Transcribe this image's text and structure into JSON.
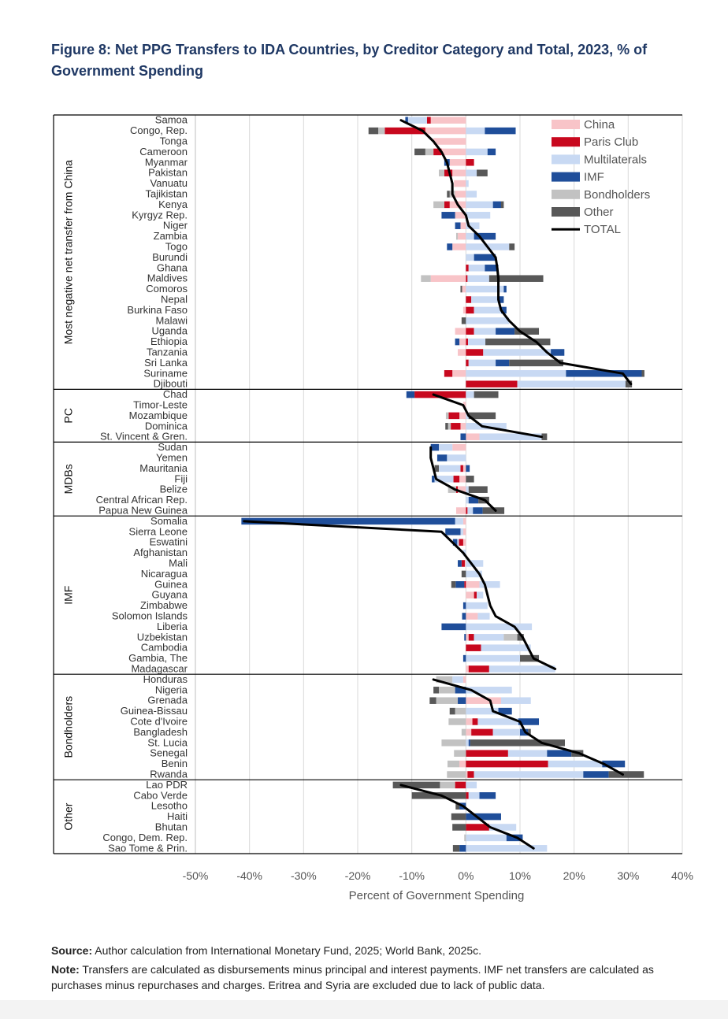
{
  "title": "Figure 8:  Net PPG Transfers to IDA Countries, by Creditor Category and Total, 2023, % of Government Spending",
  "source": {
    "label": "Source:",
    "text": " Author calculation from International Monetary Fund, 2025; World Bank, 2025c."
  },
  "note": {
    "label": "Note:",
    "text": " Transfers are calculated as disbursements minus principal and interest payments. IMF net transfers are calculated as purchases minus repurchases and charges. Eritrea and Syria are excluded due to lack of public data."
  },
  "chart_data": {
    "type": "bar",
    "orientation": "horizontal-stacked",
    "xlabel": "Percent of Government Spending",
    "xlim": [
      -50,
      40
    ],
    "xticks": [
      -50,
      -40,
      -30,
      -20,
      -10,
      0,
      10,
      20,
      30,
      40
    ],
    "xtick_labels": [
      "-50%",
      "-40%",
      "-30%",
      "-20%",
      "-10%",
      "0%",
      "10%",
      "20%",
      "30%",
      "40%"
    ],
    "grid": true,
    "legend_position": "top-right",
    "series": [
      {
        "key": "china",
        "name": "China",
        "color": "#f8c4c8"
      },
      {
        "key": "paris",
        "name": "Paris Club",
        "color": "#c8081e"
      },
      {
        "key": "multi",
        "name": "Multilaterals",
        "color": "#c8d9f3"
      },
      {
        "key": "imf",
        "name": "IMF",
        "color": "#1f4e9a"
      },
      {
        "key": "bond",
        "name": "Bondholders",
        "color": "#c2c2c2"
      },
      {
        "key": "other",
        "name": "Other",
        "color": "#585858"
      },
      {
        "key": "total",
        "name": "TOTAL",
        "color": "#000000"
      }
    ],
    "groups": [
      {
        "name": "Most negative net transfer from China",
        "countries": [
          {
            "name": "Samoa",
            "china": -6.5,
            "paris": -0.7,
            "multi": -3.5,
            "imf": -0.5,
            "bond": 0,
            "other": 0,
            "total": -12
          },
          {
            "name": "Congo, Rep.",
            "china": -7.5,
            "paris": -7.5,
            "multi": 3.5,
            "imf": 5.7,
            "bond": -1.2,
            "other": -1.8,
            "total": -8
          },
          {
            "name": "Tonga",
            "china": -6,
            "paris": 0,
            "multi": 0,
            "imf": 0,
            "bond": 0,
            "other": 0,
            "total": -6
          },
          {
            "name": "Cameroon",
            "china": -4.5,
            "paris": -1.5,
            "multi": 4,
            "imf": 1.5,
            "bond": -1.5,
            "other": -2,
            "total": -4.5
          },
          {
            "name": "Myanmar",
            "china": -3,
            "paris": 1.5,
            "multi": 0,
            "imf": -1,
            "bond": 0,
            "other": 0,
            "total": -3.5
          },
          {
            "name": "Pakistan",
            "china": -2.5,
            "paris": -1.5,
            "multi": 2,
            "imf": 0,
            "bond": -1,
            "other": 2,
            "total": -3
          },
          {
            "name": "Vanuatu",
            "china": -2.2,
            "paris": 0,
            "multi": 0.5,
            "imf": 0,
            "bond": 0,
            "other": 0,
            "total": -2.5
          },
          {
            "name": "Tajikistan",
            "china": -2,
            "paris": 0,
            "multi": 2,
            "imf": 0,
            "bond": -1,
            "other": -0.5,
            "total": -2.5
          },
          {
            "name": "Kenya",
            "china": -3,
            "paris": -1,
            "multi": 5,
            "imf": 1.5,
            "bond": -2,
            "other": 0.5,
            "total": -1.5
          },
          {
            "name": "Kyrgyz Rep.",
            "china": -2,
            "paris": 0,
            "multi": 4.5,
            "imf": -2.5,
            "bond": 0,
            "other": 0,
            "total": 0
          },
          {
            "name": "Niger",
            "china": -1,
            "paris": 0,
            "multi": 2.5,
            "imf": -1,
            "bond": 0,
            "other": 0,
            "total": 0.5
          },
          {
            "name": "Zambia",
            "china": -1.5,
            "paris": 0,
            "multi": 1.5,
            "imf": 4,
            "bond": -0.3,
            "other": 0,
            "total": 2.5
          },
          {
            "name": "Togo",
            "china": -2.5,
            "paris": 0,
            "multi": 8,
            "imf": -1,
            "bond": 0,
            "other": 1,
            "total": 4
          },
          {
            "name": "Burundi",
            "china": 0,
            "paris": 0,
            "multi": 1.5,
            "imf": 4,
            "bond": 0,
            "other": 0,
            "total": 5.5
          },
          {
            "name": "Ghana",
            "china": 0,
            "paris": 0.5,
            "multi": 3,
            "imf": 2.5,
            "bond": 0,
            "other": 0,
            "total": 5.8
          },
          {
            "name": "Maldives",
            "china": -6.5,
            "paris": 0.3,
            "multi": 4,
            "imf": 0,
            "bond": -1.8,
            "other": 10,
            "total": 6
          },
          {
            "name": "Comoros",
            "china": -0.7,
            "paris": 0,
            "multi": 7,
            "imf": 0.5,
            "bond": 0,
            "other": -0.3,
            "total": 6
          },
          {
            "name": "Nepal",
            "china": 0,
            "paris": 1,
            "multi": 5,
            "imf": 1,
            "bond": 0,
            "other": 0,
            "total": 6
          },
          {
            "name": "Burkina Faso",
            "china": -0.5,
            "paris": 1.5,
            "multi": 5,
            "imf": 1,
            "bond": 0,
            "other": 0,
            "total": 6.5
          },
          {
            "name": "Malawi",
            "china": 0,
            "paris": 0,
            "multi": 8,
            "imf": 0,
            "bond": 0,
            "other": -0.8,
            "total": 8
          },
          {
            "name": "Uganda",
            "china": -2,
            "paris": 1.5,
            "multi": 4,
            "imf": 3.5,
            "bond": 0,
            "other": 4.5,
            "total": 10
          },
          {
            "name": "Ethiopia",
            "china": -1.2,
            "paris": 0.4,
            "multi": 3.2,
            "imf": -0.8,
            "bond": 0,
            "other": 12,
            "total": 13
          },
          {
            "name": "Tanzania",
            "china": -1.5,
            "paris": 3.2,
            "multi": 12.5,
            "imf": 2.5,
            "bond": 0,
            "other": 0,
            "total": 15
          },
          {
            "name": "Sri Lanka",
            "china": 0,
            "paris": 0.5,
            "multi": 5,
            "imf": 2.5,
            "bond": 0,
            "other": 10,
            "total": 17.5
          },
          {
            "name": "Suriname",
            "china": -2.5,
            "paris": -1.5,
            "multi": 18.5,
            "imf": 14,
            "bond": 0,
            "other": 0.5,
            "total": 29
          },
          {
            "name": "Djibouti",
            "china": 0,
            "paris": 9.5,
            "multi": 20,
            "imf": 0,
            "bond": 0,
            "other": 1.2,
            "total": 30.5
          }
        ]
      },
      {
        "name": "PC",
        "countries": [
          {
            "name": "Chad",
            "china": 0,
            "paris": -9.5,
            "multi": 1.5,
            "imf": -1.5,
            "bond": 0,
            "other": 4.5,
            "total": -6
          },
          {
            "name": "Timor-Leste",
            "china": -0.5,
            "paris": 0,
            "multi": 0,
            "imf": 0,
            "bond": 0,
            "other": 0,
            "total": -0.5
          },
          {
            "name": "Mozambique",
            "china": -1.2,
            "paris": -2,
            "multi": 0.5,
            "imf": 0,
            "bond": -0.5,
            "other": 5,
            "total": 0.5
          },
          {
            "name": "Dominica",
            "china": -1,
            "paris": -1.8,
            "multi": 7.5,
            "imf": 0,
            "bond": -0.5,
            "other": -0.5,
            "total": 3
          },
          {
            "name": "St. Vincent & Gren.",
            "china": 2.5,
            "paris": 0,
            "multi": 11.5,
            "imf": -1,
            "bond": 0,
            "other": 1,
            "total": 14
          }
        ]
      },
      {
        "name": "MDBs",
        "countries": [
          {
            "name": "Sudan",
            "china": -2.5,
            "paris": 0,
            "multi": -2.5,
            "imf": -1.5,
            "bond": 0,
            "other": 0,
            "total": -6.5
          },
          {
            "name": "Yemen",
            "china": 0,
            "paris": 0,
            "multi": -3.5,
            "imf": -1.8,
            "bond": 0,
            "other": 0,
            "total": -6.5
          },
          {
            "name": "Mauritania",
            "china": -0.5,
            "paris": -0.5,
            "multi": -4,
            "imf": 0.7,
            "bond": 0,
            "other": -0.8,
            "total": -6
          },
          {
            "name": "Fiji",
            "china": -1.2,
            "paris": -1.1,
            "multi": -3.5,
            "imf": -0.5,
            "bond": 0,
            "other": 1.5,
            "total": -5.5
          },
          {
            "name": "Belize",
            "china": -1.5,
            "paris": -0.3,
            "multi": 0.5,
            "imf": 0,
            "bond": -1.5,
            "other": 3.5,
            "total": -2
          },
          {
            "name": "Central African Rep.",
            "china": 0,
            "paris": 0,
            "multi": 0.5,
            "imf": 1.8,
            "bond": 0,
            "other": 2,
            "total": 3.5
          },
          {
            "name": "Papua New Guinea",
            "china": -1.8,
            "paris": 0.3,
            "multi": 1,
            "imf": 1.8,
            "bond": 0,
            "other": 4,
            "total": 5.5
          }
        ]
      },
      {
        "name": "IMF",
        "countries": [
          {
            "name": "Somalia",
            "china": -0.5,
            "paris": 0,
            "multi": -1.5,
            "imf": -39.5,
            "bond": 0,
            "other": 0,
            "total": -41
          },
          {
            "name": "Sierra Leone",
            "china": -0.5,
            "paris": 0,
            "multi": -0.5,
            "imf": -2.8,
            "bond": 0,
            "other": 0,
            "total": -4.5
          },
          {
            "name": "Eswatini",
            "china": -0.5,
            "paris": -0.8,
            "multi": -0.3,
            "imf": -0.8,
            "bond": 0,
            "other": 0,
            "total": -2.5
          },
          {
            "name": "Afghanistan",
            "china": 0,
            "paris": 0,
            "multi": -0.5,
            "imf": 0,
            "bond": 0,
            "other": 0,
            "total": -0.5
          },
          {
            "name": "Mali",
            "china": -0.2,
            "paris": -0.6,
            "multi": 3.2,
            "imf": -0.7,
            "bond": 0,
            "other": 0,
            "total": 1
          },
          {
            "name": "Nicaragua",
            "china": 0,
            "paris": 0,
            "multi": 3,
            "imf": 0,
            "bond": 0,
            "other": -0.8,
            "total": 2.5
          },
          {
            "name": "Guinea",
            "china": 2.5,
            "paris": -0.3,
            "multi": 3.8,
            "imf": -1.6,
            "bond": 0,
            "other": -0.8,
            "total": 3.5
          },
          {
            "name": "Guyana",
            "china": 1.5,
            "paris": 0.5,
            "multi": 1.2,
            "imf": 0,
            "bond": 0,
            "other": 0,
            "total": 4
          },
          {
            "name": "Zimbabwe",
            "china": 0,
            "paris": 0,
            "multi": 4,
            "imf": -0.5,
            "bond": 0,
            "other": 0,
            "total": 4.5
          },
          {
            "name": "Solomon Islands",
            "china": 2.2,
            "paris": 0,
            "multi": 2.2,
            "imf": -0.7,
            "bond": 0,
            "other": 0,
            "total": 5.5
          },
          {
            "name": "Liberia",
            "china": 0,
            "paris": 0,
            "multi": 12.2,
            "imf": -4.5,
            "bond": 0,
            "other": 0,
            "total": 9
          },
          {
            "name": "Uzbekistan",
            "china": 0.5,
            "paris": 1,
            "multi": 5.5,
            "imf": -0.3,
            "bond": 2.5,
            "other": 1.2,
            "total": 10.5
          },
          {
            "name": "Cambodia",
            "china": 0,
            "paris": 2.8,
            "multi": 9.2,
            "imf": 0,
            "bond": 0,
            "other": 0,
            "total": 11.5
          },
          {
            "name": "Gambia, The",
            "china": 0,
            "paris": 0,
            "multi": 10,
            "imf": -0.5,
            "bond": 0,
            "other": 3.5,
            "total": 12.5
          },
          {
            "name": "Madagascar",
            "china": 0.5,
            "paris": 3.8,
            "multi": 12.2,
            "imf": 0,
            "bond": 0,
            "other": 0,
            "total": 16.5
          }
        ]
      },
      {
        "name": "Bondholders",
        "countries": [
          {
            "name": "Honduras",
            "china": -0.5,
            "paris": 0,
            "multi": -2,
            "imf": 0,
            "bond": -3,
            "other": 0,
            "total": -6
          },
          {
            "name": "Nigeria",
            "china": 0,
            "paris": 0,
            "multi": 8.5,
            "imf": -2,
            "bond": -3,
            "other": -1,
            "total": 1
          },
          {
            "name": "Grenada",
            "china": 6.5,
            "paris": 0,
            "multi": 5.5,
            "imf": -1.5,
            "bond": -4,
            "other": -1.2,
            "total": 4.5
          },
          {
            "name": "Guinea-Bissau",
            "china": 0,
            "paris": 0,
            "multi": 6,
            "imf": 2.5,
            "bond": -2,
            "other": -1,
            "total": 5
          },
          {
            "name": "Cote d'Ivoire",
            "china": 1.2,
            "paris": 1,
            "multi": 7.5,
            "imf": 3.8,
            "bond": -3.2,
            "other": 0,
            "total": 10
          },
          {
            "name": "Bangladesh",
            "china": 1,
            "paris": 4,
            "multi": 5,
            "imf": 1.5,
            "bond": -0.8,
            "other": 0.5,
            "total": 11
          },
          {
            "name": "St. Lucia",
            "china": 0,
            "paris": 0,
            "multi": 0.5,
            "imf": 0.3,
            "bond": -4.5,
            "other": 17.5,
            "total": 14
          },
          {
            "name": "Senegal",
            "china": 0,
            "paris": 7.8,
            "multi": 7.2,
            "imf": 4.5,
            "bond": -2.2,
            "other": 2.2,
            "total": 21
          },
          {
            "name": "Benin",
            "china": -1.2,
            "paris": 15.2,
            "multi": 10,
            "imf": 4.2,
            "bond": -2.2,
            "other": 0,
            "total": 25.5
          },
          {
            "name": "Rwanda",
            "china": 0.3,
            "paris": 1.2,
            "multi": 20.2,
            "imf": 4.7,
            "bond": -3.5,
            "other": 6.5,
            "total": 29
          }
        ]
      },
      {
        "name": "Other",
        "countries": [
          {
            "name": "Lao PDR",
            "china": 0,
            "paris": -2,
            "multi": 2,
            "imf": 0,
            "bond": -2.8,
            "other": -8.7,
            "total": -12
          },
          {
            "name": "Cabo Verde",
            "china": 0,
            "paris": 0.5,
            "multi": 2,
            "imf": 3,
            "bond": 0,
            "other": -10,
            "total": -4.5
          },
          {
            "name": "Lesotho",
            "china": 0,
            "paris": 0,
            "multi": 0,
            "imf": -1.2,
            "bond": 0,
            "other": -0.7,
            "total": -0.5
          },
          {
            "name": "Haiti",
            "china": 0,
            "paris": 0,
            "multi": 0,
            "imf": 6.5,
            "bond": 0,
            "other": -2.7,
            "total": 2
          },
          {
            "name": "Bhutan",
            "china": 0,
            "paris": 4.3,
            "multi": 5,
            "imf": 0,
            "bond": 0,
            "other": -2.5,
            "total": 4.5
          },
          {
            "name": "Congo, Dem. Rep.",
            "china": 0,
            "paris": 0,
            "multi": 7.5,
            "imf": 3,
            "bond": -0.3,
            "other": 0,
            "total": 9.5
          },
          {
            "name": "Sao Tome & Prin.",
            "china": 0,
            "paris": 0,
            "multi": 15,
            "imf": -1.2,
            "bond": 0,
            "other": -1.2,
            "total": 12.5
          }
        ]
      }
    ]
  }
}
